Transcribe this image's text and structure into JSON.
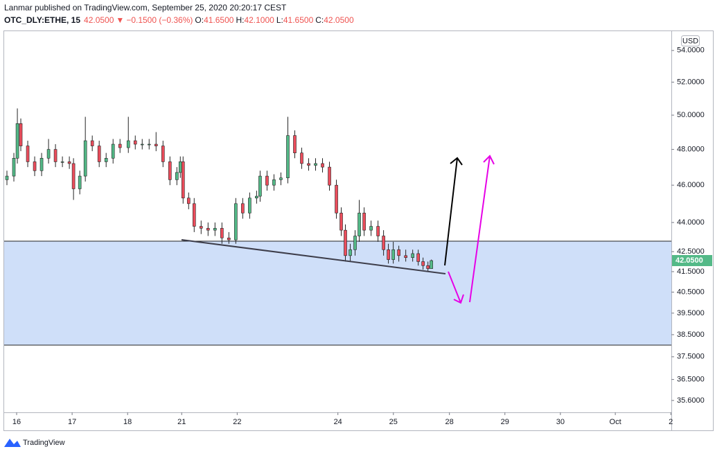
{
  "header": {
    "published": "Lanmar published on TradingView.com, September 25, 2020 20:20:17 CEST",
    "symbol": "OTC_DLY:ETHE, 15",
    "last": "42.0500",
    "arrow": "▼",
    "change": "−0.1500 (−0.36%)",
    "ohlc": [
      {
        "label": "O:",
        "value": "41.6500"
      },
      {
        "label": "H:",
        "value": "42.1000"
      },
      {
        "label": "L:",
        "value": "41.6500"
      },
      {
        "label": "C:",
        "value": "42.0500"
      }
    ]
  },
  "chart_data": {
    "type": "candlestick",
    "currency": "USD",
    "log_scale": true,
    "up_color": "#53b987",
    "down_color": "#eb4d5c",
    "ylim": [
      35.1,
      55.3
    ],
    "yticks": [
      {
        "value": 54,
        "label": "54.0000"
      },
      {
        "value": 52,
        "label": "52.0000"
      },
      {
        "value": 50,
        "label": "50.0000"
      },
      {
        "value": 48,
        "label": "48.0000"
      },
      {
        "value": 46,
        "label": "46.0000"
      },
      {
        "value": 44,
        "label": "44.0000"
      },
      {
        "value": 42.5,
        "label": "42.5000"
      },
      {
        "value": 41.5,
        "label": "41.5000"
      },
      {
        "value": 40.5,
        "label": "40.5000"
      },
      {
        "value": 39.5,
        "label": "39.5000"
      },
      {
        "value": 38.5,
        "label": "38.5000"
      },
      {
        "value": 37.5,
        "label": "37.5000"
      },
      {
        "value": 36.5,
        "label": "36.5000"
      },
      {
        "value": 35.6,
        "label": "35.6000"
      }
    ],
    "xlim": [
      -0.225,
      11.8
    ],
    "xticks": [
      {
        "value": 0,
        "label": "16"
      },
      {
        "value": 1,
        "label": "17"
      },
      {
        "value": 2,
        "label": "18"
      },
      {
        "value": 2.975,
        "label": "21"
      },
      {
        "value": 3.975,
        "label": "22"
      },
      {
        "value": 5.79,
        "label": "24"
      },
      {
        "value": 6.79,
        "label": "25"
      },
      {
        "value": 7.8,
        "label": "28"
      },
      {
        "value": 8.8,
        "label": "29"
      },
      {
        "value": 9.8,
        "label": "30"
      },
      {
        "value": 10.79,
        "label": "Oct"
      },
      {
        "value": 11.79,
        "label": "2"
      }
    ],
    "last_price": {
      "value": 42.05,
      "label": "42.0500",
      "color": "#53b987"
    },
    "x": [
      -0.175,
      -0.05,
      0.013,
      0.075,
      0.2,
      0.325,
      0.45,
      0.575,
      0.7,
      0.825,
      0.95,
      1.025,
      1.138,
      1.238,
      1.363,
      1.488,
      1.613,
      1.738,
      1.863,
      2.013,
      2.138,
      2.263,
      2.388,
      2.513,
      2.638,
      2.763,
      2.888,
      2.95,
      3.0,
      3.1,
      3.2,
      3.325,
      3.45,
      3.575,
      3.7,
      3.825,
      3.95,
      4.075,
      4.2,
      4.325,
      4.388,
      4.513,
      4.638,
      4.763,
      4.888,
      5.013,
      5.138,
      5.263,
      5.388,
      5.513,
      5.638,
      5.763,
      5.85,
      5.925,
      6.013,
      6.1,
      6.175,
      6.263,
      6.388,
      6.513,
      6.613,
      6.7,
      6.788,
      6.888,
      7.013,
      7.138,
      7.238,
      7.325,
      7.413,
      7.475
    ],
    "open": [
      46.3,
      46.5,
      47.5,
      49.5,
      48.2,
      47.3,
      46.8,
      47.5,
      48.0,
      47.3,
      47.3,
      47.2,
      45.8,
      46.5,
      48.5,
      48.2,
      47.3,
      47.5,
      48.3,
      48.1,
      48.5,
      48.3,
      48.3,
      48.3,
      48.2,
      47.3,
      46.3,
      46.7,
      47.3,
      45.3,
      45.0,
      43.8,
      43.7,
      43.6,
      43.7,
      43.2,
      43.1,
      45.0,
      44.5,
      45.3,
      45.4,
      46.5,
      46.0,
      46.3,
      46.4,
      48.8,
      47.8,
      47.2,
      47.1,
      47.2,
      47.0,
      46.0,
      44.5,
      43.6,
      42.3,
      42.6,
      43.3,
      44.5,
      43.6,
      43.8,
      43.3,
      42.6,
      42.1,
      42.6,
      42.3,
      42.2,
      42.4,
      42.0,
      41.8,
      41.65
    ],
    "high": [
      46.8,
      47.8,
      50.4,
      49.8,
      48.5,
      47.6,
      47.8,
      48.6,
      48.3,
      47.6,
      47.6,
      47.5,
      46.8,
      49.9,
      48.8,
      48.5,
      47.8,
      48.6,
      48.6,
      49.9,
      48.8,
      48.6,
      48.6,
      49.0,
      48.5,
      47.6,
      47.0,
      47.6,
      47.6,
      45.6,
      45.3,
      44.1,
      44.0,
      44.0,
      44.0,
      43.5,
      45.3,
      45.3,
      45.6,
      45.7,
      46.8,
      46.8,
      46.6,
      46.7,
      49.9,
      49.1,
      48.1,
      47.5,
      47.5,
      47.5,
      47.3,
      46.3,
      44.8,
      43.9,
      42.9,
      43.6,
      45.2,
      44.8,
      44.1,
      44.1,
      43.6,
      42.9,
      43.0,
      42.8,
      42.6,
      42.6,
      42.6,
      42.2,
      42.0,
      42.1
    ],
    "low": [
      46.0,
      46.2,
      47.2,
      47.9,
      47.0,
      46.5,
      46.5,
      47.2,
      47.0,
      47.0,
      46.9,
      45.2,
      45.5,
      46.2,
      47.9,
      47.0,
      47.0,
      47.2,
      47.8,
      47.8,
      48.0,
      48.0,
      48.0,
      47.9,
      47.0,
      46.0,
      46.0,
      46.4,
      45.0,
      44.7,
      43.5,
      43.4,
      43.3,
      43.3,
      42.9,
      42.9,
      42.9,
      44.2,
      44.2,
      45.0,
      45.1,
      45.7,
      45.7,
      46.0,
      46.1,
      47.5,
      46.9,
      46.8,
      46.8,
      46.7,
      45.7,
      44.2,
      43.3,
      42.0,
      42.0,
      42.3,
      43.0,
      43.3,
      43.3,
      43.0,
      42.3,
      41.9,
      41.9,
      42.0,
      42.0,
      42.0,
      41.8,
      41.6,
      41.5,
      41.65
    ],
    "close": [
      46.5,
      47.5,
      49.5,
      48.2,
      47.3,
      46.8,
      47.5,
      48.0,
      47.3,
      47.3,
      47.2,
      45.8,
      46.5,
      48.5,
      48.2,
      47.3,
      47.5,
      48.3,
      48.1,
      48.5,
      48.3,
      48.3,
      48.3,
      48.2,
      47.3,
      46.3,
      46.7,
      47.3,
      45.3,
      45.0,
      43.8,
      43.7,
      43.6,
      43.7,
      43.2,
      43.1,
      45.0,
      44.5,
      45.3,
      45.4,
      46.5,
      46.0,
      46.3,
      46.4,
      48.8,
      47.8,
      47.2,
      47.1,
      47.2,
      47.0,
      46.0,
      44.5,
      43.6,
      42.3,
      42.6,
      43.3,
      44.5,
      43.6,
      43.8,
      43.3,
      42.6,
      42.1,
      42.6,
      42.3,
      42.2,
      42.4,
      42.0,
      41.8,
      41.65,
      42.05
    ]
  },
  "footer": {
    "brand": "TradingView"
  }
}
